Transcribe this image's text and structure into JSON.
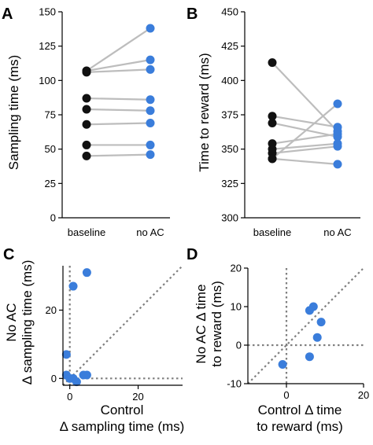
{
  "colors": {
    "baseline_marker": "#111111",
    "noac_marker": "#3a7ddb",
    "pair_line": "#bdbdbd",
    "reference_line": "#808080",
    "axis": "#000000"
  },
  "chart_data": [
    {
      "panel": "A",
      "type": "paired-dot",
      "categories": [
        "baseline",
        "no AC"
      ],
      "ylabel": "Sampling time (ms)",
      "ylim": [
        0,
        150
      ],
      "yticks": [
        "0",
        "25",
        "50",
        "75",
        "100",
        "125",
        "150"
      ],
      "pairs": [
        [
          45,
          46
        ],
        [
          53,
          53
        ],
        [
          68,
          69
        ],
        [
          79,
          78
        ],
        [
          87,
          86
        ],
        [
          106,
          108
        ],
        [
          107,
          115
        ],
        [
          107,
          138
        ]
      ]
    },
    {
      "panel": "B",
      "type": "paired-dot",
      "categories": [
        "baseline",
        "no AC"
      ],
      "ylabel": "Time to reward (ms)",
      "ylim": [
        300,
        450
      ],
      "yticks": [
        "300",
        "325",
        "350",
        "375",
        "400",
        "425",
        "450"
      ],
      "pairs": [
        [
          343,
          339
        ],
        [
          347,
          352
        ],
        [
          350,
          354
        ],
        [
          354,
          361
        ],
        [
          369,
          359
        ],
        [
          374,
          366
        ],
        [
          413,
          363
        ],
        [
          343,
          383
        ]
      ]
    },
    {
      "panel": "C",
      "type": "scatter",
      "xlabel": [
        "Control",
        "Δ sampling time (ms)"
      ],
      "ylabel": [
        "No AC",
        "Δ sampling time (ms)"
      ],
      "xlim": [
        -2,
        33
      ],
      "ylim": [
        -2,
        33
      ],
      "xticks": [
        "0",
        "20"
      ],
      "yticks": [
        "0",
        "20"
      ],
      "reference_lines": [
        "x=0",
        "y=0",
        "y=x"
      ],
      "points": [
        [
          -1,
          7
        ],
        [
          -1,
          1
        ],
        [
          0,
          0
        ],
        [
          1,
          27
        ],
        [
          1,
          0
        ],
        [
          2,
          -1
        ],
        [
          4,
          1
        ],
        [
          5,
          1
        ],
        [
          5,
          31
        ]
      ]
    },
    {
      "panel": "D",
      "type": "scatter",
      "xlabel": [
        "Control Δ time",
        "to reward (ms)"
      ],
      "ylabel": [
        "No AC Δ time",
        "to reward (ms)"
      ],
      "xlim": [
        -10,
        20
      ],
      "ylim": [
        -10,
        20
      ],
      "xticks": [
        "0",
        "20"
      ],
      "yticks": [
        "-10",
        "0",
        "10",
        "20"
      ],
      "reference_lines": [
        "x=0",
        "y=0",
        "y=x"
      ],
      "points": [
        [
          -1,
          -5
        ],
        [
          6,
          -3
        ],
        [
          6,
          9
        ],
        [
          7,
          10
        ],
        [
          8,
          2
        ],
        [
          9,
          6
        ]
      ]
    }
  ]
}
